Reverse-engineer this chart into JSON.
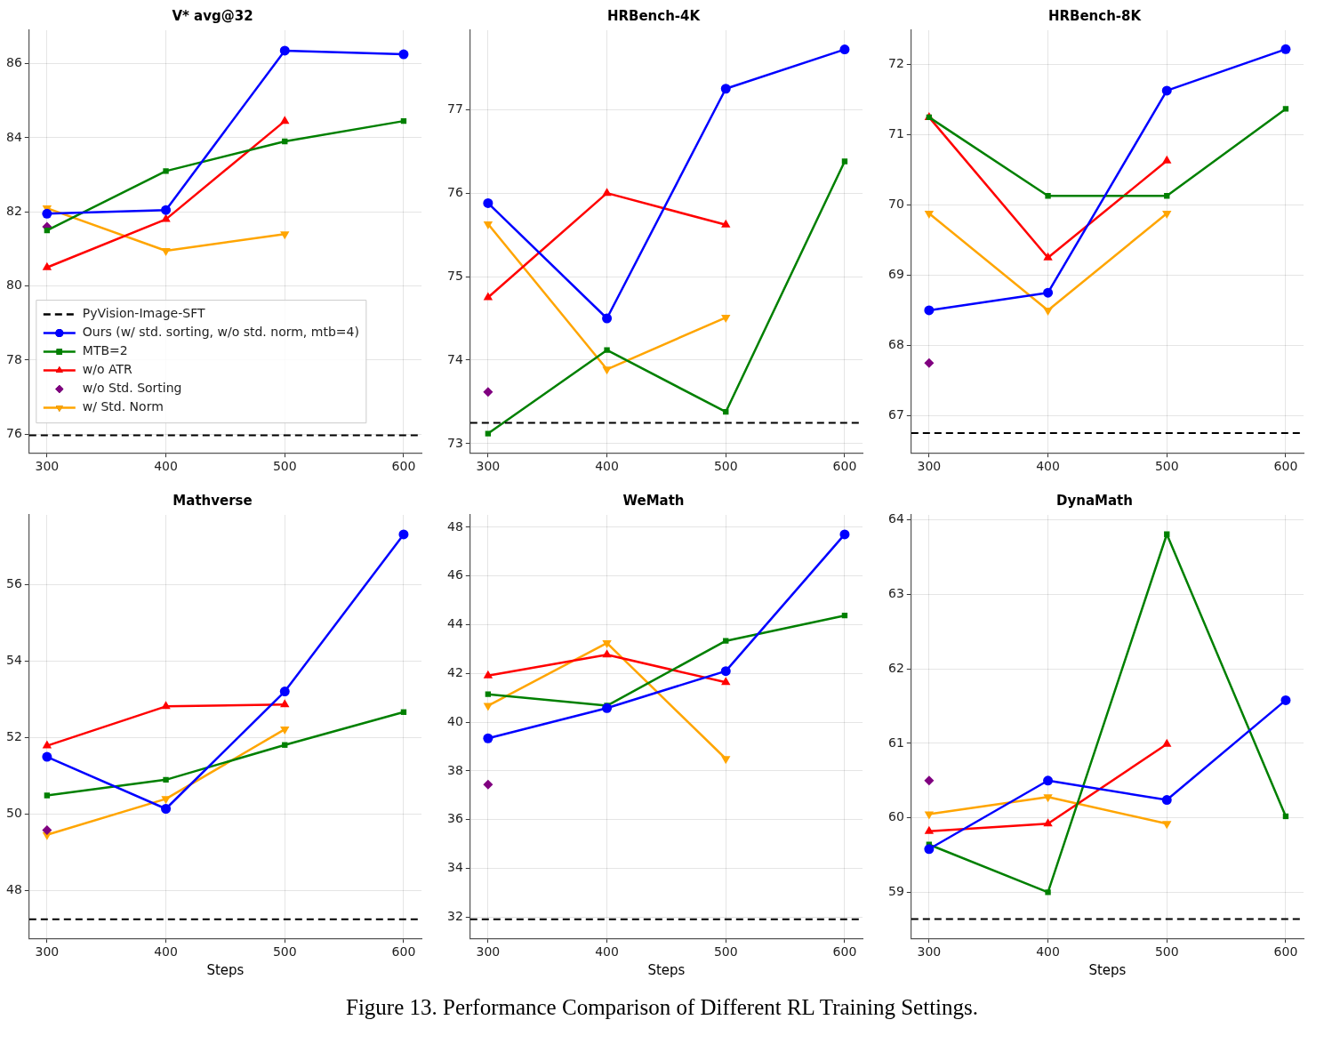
{
  "chart_data": [
    {
      "type": "line",
      "title": "V* avg@32",
      "x": [
        300,
        400,
        500,
        600
      ],
      "xlim": [
        285,
        615
      ],
      "xticks": [
        300,
        400,
        500,
        600
      ],
      "ylim": [
        75.5,
        86.9
      ],
      "yticks": [
        76,
        78,
        80,
        82,
        84,
        86
      ],
      "grid": true,
      "legend": "lower left",
      "annotations": [
        "Figure 13. Performance Comparison of Different RL Training Settings."
      ],
      "ref_lines": [
        {
          "axis": "y",
          "value": 75.97,
          "label": "PyVision-Image-SFT",
          "color": "#000000",
          "line_style": "dashed"
        }
      ],
      "series": [
        {
          "name": "Ours (w/ std. sorting, w/o std. norm, mtb=4)",
          "color": "#0000ff",
          "marker": "circle",
          "values": [
            81.95,
            82.05,
            86.35,
            86.25
          ]
        },
        {
          "name": "MTB=2",
          "color": "#008000",
          "marker": "square",
          "values": [
            81.5,
            83.1,
            83.9,
            84.45
          ]
        },
        {
          "name": "w/o ATR",
          "color": "#ff0000",
          "marker": "triangle",
          "x": [
            300,
            400,
            500
          ],
          "values": [
            80.5,
            81.8,
            84.45
          ]
        },
        {
          "name": "w/o Std. Sorting",
          "type": "scatter",
          "color": "#800080",
          "marker": "diamond",
          "x": [
            300
          ],
          "values": [
            81.6
          ]
        },
        {
          "name": "w/ Std. Norm",
          "color": "#ffa500",
          "marker": "triangle-down",
          "x": [
            300,
            400,
            500
          ],
          "values": [
            82.1,
            80.95,
            81.4
          ]
        }
      ]
    },
    {
      "type": "line",
      "title": "HRBench-4K",
      "x": [
        300,
        400,
        500,
        600
      ],
      "xlim": [
        285,
        615
      ],
      "xticks": [
        300,
        400,
        500,
        600
      ],
      "ylim": [
        72.89,
        77.95
      ],
      "yticks": [
        73,
        74,
        75,
        76,
        77
      ],
      "grid": true,
      "ref_lines": [
        {
          "axis": "y",
          "value": 73.25,
          "color": "#000000",
          "line_style": "dashed"
        }
      ],
      "series": [
        {
          "color": "#0000ff",
          "marker": "circle",
          "values": [
            75.88,
            74.5,
            77.25,
            77.72
          ]
        },
        {
          "color": "#008000",
          "marker": "square",
          "values": [
            73.12,
            74.12,
            73.38,
            76.38
          ]
        },
        {
          "color": "#ff0000",
          "marker": "triangle",
          "x": [
            300,
            400,
            500
          ],
          "values": [
            74.75,
            76.0,
            75.62
          ]
        },
        {
          "type": "scatter",
          "color": "#800080",
          "marker": "diamond",
          "x": [
            300
          ],
          "values": [
            73.62
          ]
        },
        {
          "color": "#ffa500",
          "marker": "triangle-down",
          "x": [
            300,
            400,
            500
          ],
          "values": [
            75.63,
            73.89,
            74.51
          ]
        }
      ]
    },
    {
      "type": "line",
      "title": "HRBench-8K",
      "x": [
        300,
        400,
        500,
        600
      ],
      "xlim": [
        285,
        615
      ],
      "xticks": [
        300,
        400,
        500,
        600
      ],
      "ylim": [
        66.47,
        72.49
      ],
      "yticks": [
        67,
        68,
        69,
        70,
        71,
        72
      ],
      "grid": true,
      "ref_lines": [
        {
          "axis": "y",
          "value": 66.75,
          "color": "#000000",
          "line_style": "dashed"
        }
      ],
      "series": [
        {
          "color": "#0000ff",
          "marker": "circle",
          "values": [
            68.5,
            68.75,
            71.63,
            72.22
          ]
        },
        {
          "color": "#008000",
          "marker": "square",
          "values": [
            71.25,
            70.13,
            70.13,
            71.37
          ]
        },
        {
          "color": "#ff0000",
          "marker": "triangle",
          "x": [
            300,
            400,
            500
          ],
          "values": [
            71.25,
            69.25,
            70.63
          ]
        },
        {
          "type": "scatter",
          "color": "#800080",
          "marker": "diamond",
          "x": [
            300
          ],
          "values": [
            67.75
          ]
        },
        {
          "color": "#ffa500",
          "marker": "triangle-down",
          "x": [
            300,
            400,
            500
          ],
          "values": [
            69.88,
            68.5,
            69.88
          ]
        }
      ]
    },
    {
      "type": "line",
      "title": "Mathverse",
      "xlabel": "Steps",
      "x": [
        300,
        400,
        500,
        600
      ],
      "xlim": [
        285,
        615
      ],
      "xticks": [
        300,
        400,
        500,
        600
      ],
      "ylim": [
        46.74,
        57.82
      ],
      "yticks": [
        48,
        50,
        52,
        54,
        56
      ],
      "grid": true,
      "ref_lines": [
        {
          "axis": "y",
          "value": 47.24,
          "color": "#000000",
          "line_style": "dashed"
        }
      ],
      "series": [
        {
          "color": "#0000ff",
          "marker": "circle",
          "values": [
            51.49,
            50.13,
            53.2,
            57.31
          ]
        },
        {
          "color": "#008000",
          "marker": "square",
          "values": [
            50.48,
            50.89,
            51.8,
            52.66
          ]
        },
        {
          "color": "#ff0000",
          "marker": "triangle",
          "x": [
            300,
            400,
            500
          ],
          "values": [
            51.78,
            52.81,
            52.86
          ]
        },
        {
          "type": "scatter",
          "color": "#800080",
          "marker": "diamond",
          "x": [
            300
          ],
          "values": [
            49.57
          ]
        },
        {
          "color": "#ffa500",
          "marker": "triangle-down",
          "x": [
            300,
            400,
            500
          ],
          "values": [
            49.45,
            50.39,
            52.21
          ]
        }
      ]
    },
    {
      "type": "line",
      "title": "WeMath",
      "xlabel": "Steps",
      "x": [
        300,
        400,
        500,
        600
      ],
      "xlim": [
        285,
        615
      ],
      "xticks": [
        300,
        400,
        500,
        600
      ],
      "ylim": [
        31.13,
        48.51
      ],
      "yticks": [
        32,
        34,
        36,
        38,
        40,
        42,
        44,
        46,
        48
      ],
      "grid": true,
      "ref_lines": [
        {
          "axis": "y",
          "value": 31.91,
          "color": "#000000",
          "line_style": "dashed"
        }
      ],
      "series": [
        {
          "color": "#0000ff",
          "marker": "circle",
          "values": [
            39.34,
            40.58,
            42.1,
            47.71
          ]
        },
        {
          "color": "#008000",
          "marker": "square",
          "values": [
            41.15,
            40.68,
            43.34,
            44.38
          ]
        },
        {
          "color": "#ff0000",
          "marker": "triangle",
          "x": [
            300,
            400,
            500
          ],
          "values": [
            41.91,
            42.77,
            41.64
          ]
        },
        {
          "type": "scatter",
          "color": "#800080",
          "marker": "diamond",
          "x": [
            300
          ],
          "values": [
            37.44
          ]
        },
        {
          "color": "#ffa500",
          "marker": "triangle-down",
          "x": [
            300,
            400,
            500
          ],
          "values": [
            40.68,
            43.25,
            38.5
          ]
        }
      ]
    },
    {
      "type": "line",
      "title": "DynaMath",
      "xlabel": "Steps",
      "x": [
        300,
        400,
        500,
        600
      ],
      "xlim": [
        285,
        615
      ],
      "xticks": [
        300,
        400,
        500,
        600
      ],
      "ylim": [
        58.38,
        64.07
      ],
      "yticks": [
        59,
        60,
        61,
        62,
        63,
        64
      ],
      "grid": true,
      "ref_lines": [
        {
          "axis": "y",
          "value": 58.64,
          "color": "#000000",
          "line_style": "dashed"
        }
      ],
      "series": [
        {
          "color": "#0000ff",
          "marker": "circle",
          "values": [
            59.58,
            60.5,
            60.24,
            61.58
          ]
        },
        {
          "color": "#008000",
          "marker": "square",
          "values": [
            59.64,
            59.0,
            63.81,
            60.02
          ]
        },
        {
          "color": "#ff0000",
          "marker": "triangle",
          "x": [
            300,
            400,
            500
          ],
          "values": [
            59.82,
            59.92,
            60.99
          ]
        },
        {
          "type": "scatter",
          "color": "#800080",
          "marker": "diamond",
          "x": [
            300
          ],
          "values": [
            60.5
          ]
        },
        {
          "color": "#ffa500",
          "marker": "triangle-down",
          "x": [
            300,
            400,
            500
          ],
          "values": [
            60.05,
            60.28,
            59.92
          ]
        }
      ]
    }
  ]
}
